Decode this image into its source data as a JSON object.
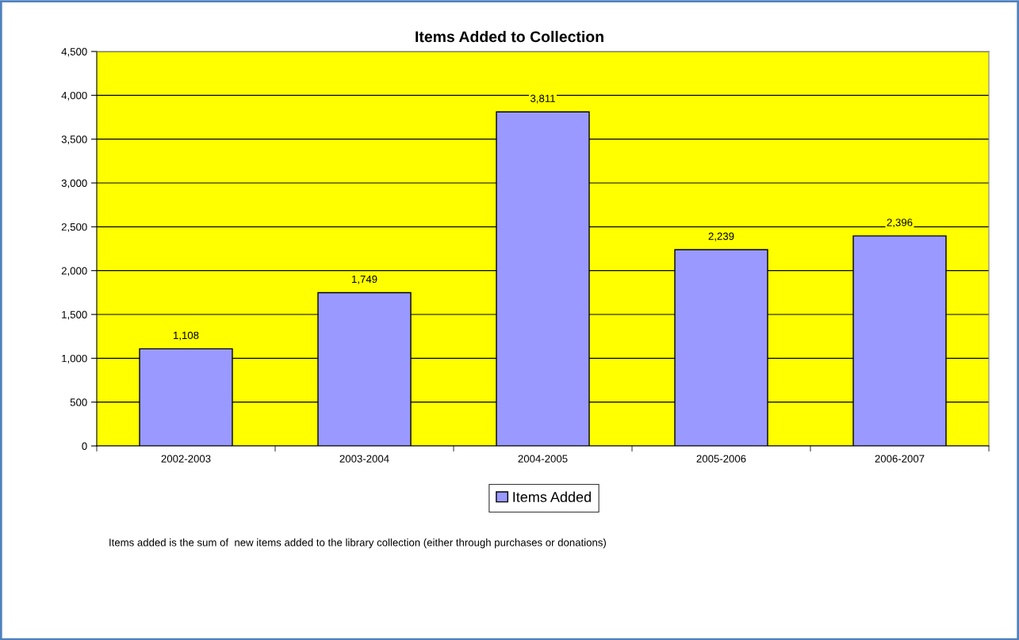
{
  "chart_data": {
    "type": "bar",
    "title": "Items Added to Collection",
    "categories": [
      "2002-2003",
      "2003-2004",
      "2004-2005",
      "2005-2006",
      "2006-2007"
    ],
    "series": [
      {
        "name": "Items Added",
        "color": "#9999ff",
        "values": [
          1108,
          1749,
          3811,
          2239,
          2396
        ],
        "value_labels": [
          "1,108",
          "1,749",
          "3,811",
          "2,239",
          "2,396"
        ]
      }
    ],
    "ylim": [
      0,
      4500
    ],
    "yticks": [
      {
        "value": 0,
        "label": "0"
      },
      {
        "value": 500,
        "label": "500"
      },
      {
        "value": 1000,
        "label": "1,000"
      },
      {
        "value": 1500,
        "label": "1,500"
      },
      {
        "value": 2000,
        "label": "2,000"
      },
      {
        "value": 2500,
        "label": "2,500"
      },
      {
        "value": 3000,
        "label": "3,000"
      },
      {
        "value": 3500,
        "label": "3,500"
      },
      {
        "value": 4000,
        "label": "4,000"
      },
      {
        "value": 4500,
        "label": "4,500"
      }
    ],
    "grid": "y",
    "legend": "bottom",
    "annotations": [
      "Items added is the sum of  new items added to the library collection (either through purchases or donations)"
    ]
  }
}
